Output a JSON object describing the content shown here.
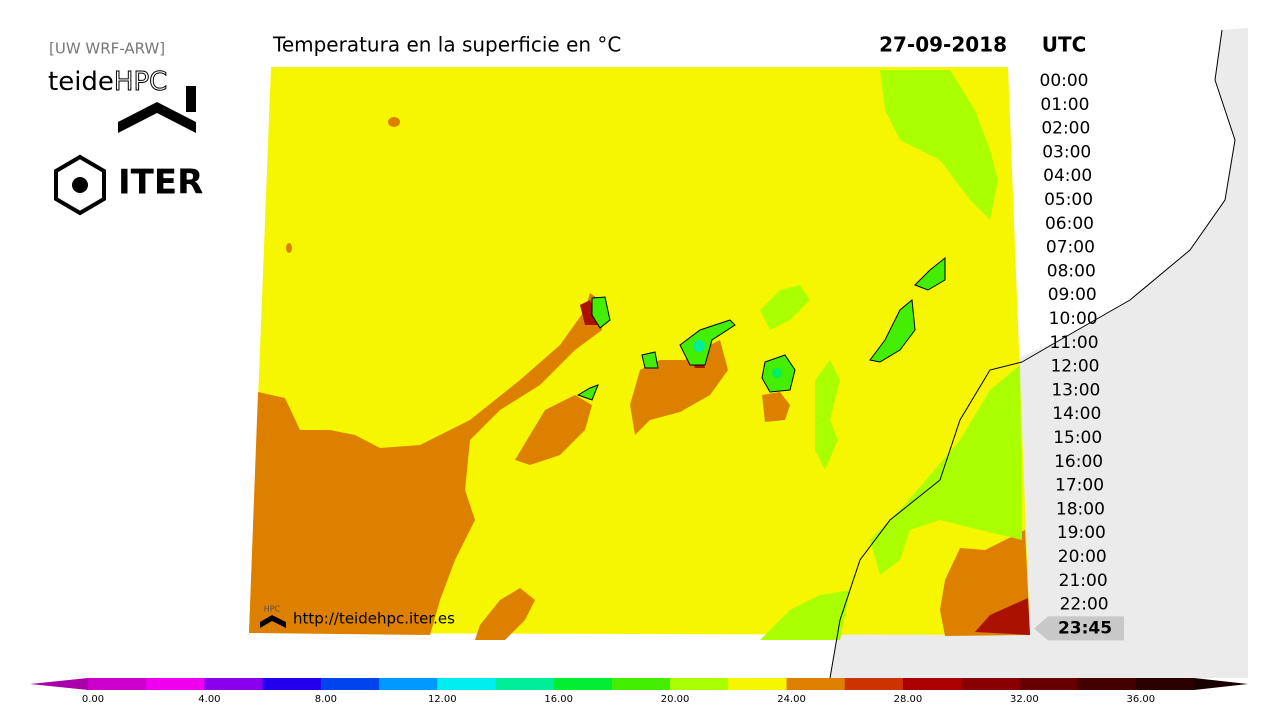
{
  "header": {
    "model": "[UW WRF-ARW]",
    "title": "Temperatura en la superficie en °C",
    "date": "27-09-2018",
    "timezone": "UTC"
  },
  "logos": {
    "teide": "teide",
    "hpc": "HPC",
    "iter": "ITER"
  },
  "times": [
    "00:00",
    "01:00",
    "02:00",
    "03:00",
    "04:00",
    "05:00",
    "06:00",
    "07:00",
    "08:00",
    "09:00",
    "10:00",
    "11:00",
    "12:00",
    "13:00",
    "14:00",
    "15:00",
    "16:00",
    "17:00",
    "18:00",
    "19:00",
    "20:00",
    "21:00",
    "22:00"
  ],
  "current_time": "23:45",
  "footer": {
    "logo": "HPC",
    "url": "http://teidehpc.iter.es"
  },
  "colorbar": {
    "labels": [
      "0.00",
      "4.00",
      "8.00",
      "12.00",
      "16.00",
      "20.00",
      "24.00",
      "28.00",
      "32.00",
      "36.00"
    ],
    "colors": [
      "#cc00cc",
      "#ee00ee",
      "#8800ee",
      "#2200ee",
      "#0044ee",
      "#0099ff",
      "#00eeee",
      "#00ee99",
      "#00ee33",
      "#44ee00",
      "#aaff00",
      "#f6f600",
      "#dd8000",
      "#cc3300",
      "#aa0000",
      "#880000",
      "#660000",
      "#440000",
      "#2a0000"
    ],
    "under": "#aa00aa",
    "over": "#1a0000"
  }
}
